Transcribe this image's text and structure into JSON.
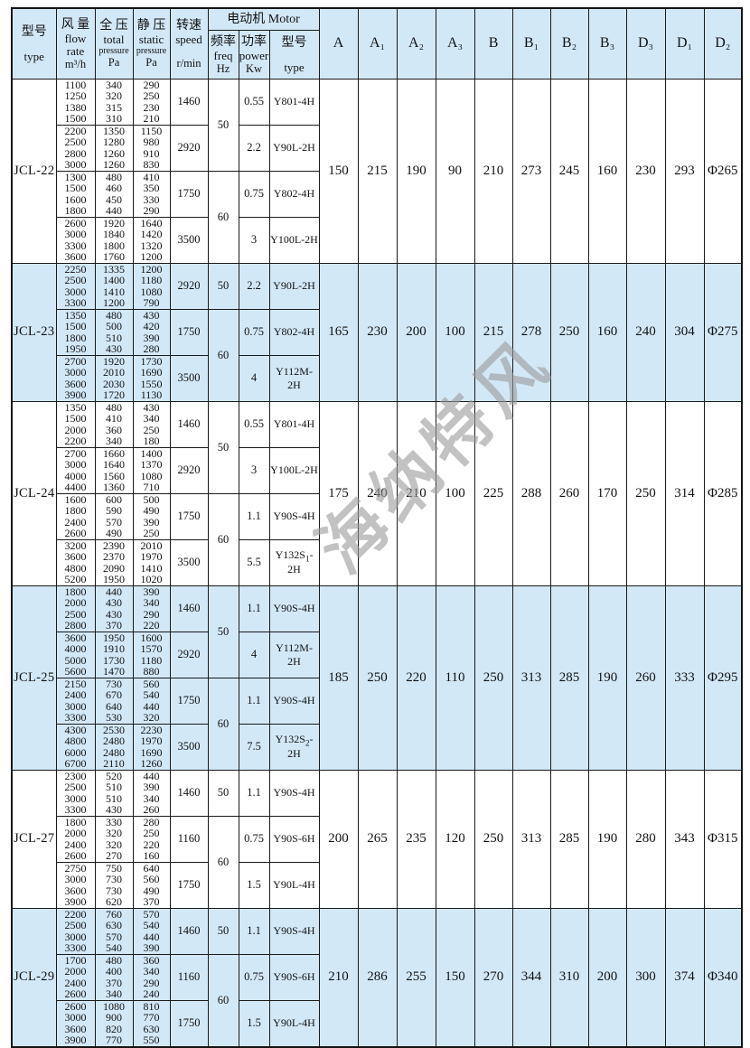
{
  "header": {
    "type_zh": "型号",
    "type_en": "type",
    "flow_zh": "风 量",
    "flow_en1": "flow",
    "flow_en2": "rate",
    "flow_unit": "m³/h",
    "total_zh": "全 压",
    "total_en": "total",
    "total_en2": "pressure",
    "total_unit": "Pa",
    "static_zh": "静 压",
    "static_en": "static",
    "static_en2": "pressure",
    "static_unit": "Pa",
    "speed_zh": "转速",
    "speed_en": "speed",
    "speed_unit": "r/min",
    "motor_group": "电动机 Motor",
    "freq_zh": "频率",
    "freq_en": "freq",
    "freq_unit": "Hz",
    "power_zh": "功率",
    "power_en": "power",
    "power_unit": "Kw",
    "mtype_zh": "型号",
    "mtype_en": "type",
    "dim_cols": [
      "A",
      "A₁",
      "A₂",
      "A₃",
      "B",
      "B₁",
      "B₂",
      "B₃",
      "D₃",
      "D₁",
      "D₂"
    ]
  },
  "watermark": "海纳特风",
  "colors": {
    "header_blue": "#d3e8f7",
    "border": "#1a1a1a",
    "watermark_gray": "#9a9a9a"
  },
  "sections": [
    {
      "model": "JCL-22",
      "shaded": false,
      "groups": [
        {
          "flow": [
            "1100",
            "1250",
            "1380",
            "1500"
          ],
          "total": [
            "340",
            "320",
            "315",
            "310"
          ],
          "static": [
            "290",
            "250",
            "230",
            "210"
          ],
          "speed": "1460",
          "power": "0.55",
          "motor": "Y801-4H"
        },
        {
          "flow": [
            "2200",
            "2500",
            "2800",
            "3000"
          ],
          "total": [
            "1350",
            "1280",
            "1260",
            "1260"
          ],
          "static": [
            "1150",
            "980",
            "910",
            "830"
          ],
          "speed": "2920",
          "power": "2.2",
          "motor": "Y90L-2H"
        },
        {
          "flow": [
            "1300",
            "1500",
            "1600",
            "1800"
          ],
          "total": [
            "480",
            "460",
            "450",
            "440"
          ],
          "static": [
            "410",
            "350",
            "330",
            "290"
          ],
          "speed": "1750",
          "power": "0.75",
          "motor": "Y802-4H"
        },
        {
          "flow": [
            "2600",
            "3000",
            "3300",
            "3600"
          ],
          "total": [
            "1920",
            "1840",
            "1800",
            "1760"
          ],
          "static": [
            "1640",
            "1420",
            "1320",
            "1200"
          ],
          "speed": "3500",
          "power": "3",
          "motor": "Y100L-2H"
        }
      ],
      "freqs": [
        {
          "row": 0,
          "span": 2,
          "label": "50"
        },
        {
          "row": 2,
          "span": 2,
          "label": "60"
        }
      ],
      "dims": [
        "150",
        "215",
        "190",
        "90",
        "210",
        "273",
        "245",
        "160",
        "230",
        "293",
        "Φ265"
      ]
    },
    {
      "model": "JCL-23",
      "shaded": true,
      "groups": [
        {
          "flow": [
            "2250",
            "2500",
            "3000",
            "3300"
          ],
          "total": [
            "1335",
            "1400",
            "1410",
            "1200"
          ],
          "static": [
            "1200",
            "1180",
            "1080",
            "790"
          ],
          "speed": "2920",
          "power": "2.2",
          "motor": "Y90L-2H"
        },
        {
          "flow": [
            "1350",
            "1500",
            "1800",
            "1950"
          ],
          "total": [
            "480",
            "500",
            "510",
            "430"
          ],
          "static": [
            "430",
            "420",
            "390",
            "280"
          ],
          "speed": "1750",
          "power": "0.75",
          "motor": "Y802-4H"
        },
        {
          "flow": [
            "2700",
            "3000",
            "3600",
            "3900"
          ],
          "total": [
            "1920",
            "2010",
            "2030",
            "1720"
          ],
          "static": [
            "1730",
            "1690",
            "1550",
            "1130"
          ],
          "speed": "3500",
          "power": "4",
          "motor": "Y112M-2H"
        }
      ],
      "freqs": [
        {
          "row": 0,
          "span": 1,
          "label": "50"
        },
        {
          "row": 1,
          "span": 2,
          "label": "60"
        }
      ],
      "dims": [
        "165",
        "230",
        "200",
        "100",
        "215",
        "278",
        "250",
        "160",
        "240",
        "304",
        "Φ275"
      ]
    },
    {
      "model": "JCL-24",
      "shaded": false,
      "groups": [
        {
          "flow": [
            "1350",
            "1500",
            "2000",
            "2200"
          ],
          "total": [
            "480",
            "410",
            "360",
            "340"
          ],
          "static": [
            "430",
            "340",
            "250",
            "180"
          ],
          "speed": "1460",
          "power": "0.55",
          "motor": "Y801-4H"
        },
        {
          "flow": [
            "2700",
            "3000",
            "4000",
            "4400"
          ],
          "total": [
            "1660",
            "1640",
            "1560",
            "1360"
          ],
          "static": [
            "1400",
            "1370",
            "1080",
            "710"
          ],
          "speed": "2920",
          "power": "3",
          "motor": "Y100L-2H"
        },
        {
          "flow": [
            "1600",
            "1800",
            "2400",
            "2600"
          ],
          "total": [
            "600",
            "590",
            "570",
            "490"
          ],
          "static": [
            "500",
            "490",
            "390",
            "250"
          ],
          "speed": "1750",
          "power": "1.1",
          "motor": "Y90S-4H"
        },
        {
          "flow": [
            "3200",
            "3600",
            "4800",
            "5200"
          ],
          "total": [
            "2390",
            "2370",
            "2090",
            "1950"
          ],
          "static": [
            "2010",
            "1970",
            "1410",
            "1020"
          ],
          "speed": "3500",
          "power": "5.5",
          "motor": "Y132S₁-2H"
        }
      ],
      "freqs": [
        {
          "row": 0,
          "span": 2,
          "label": "50"
        },
        {
          "row": 2,
          "span": 2,
          "label": "60"
        }
      ],
      "dims": [
        "175",
        "240",
        "210",
        "100",
        "225",
        "288",
        "260",
        "170",
        "250",
        "314",
        "Φ285"
      ]
    },
    {
      "model": "JCL-25",
      "shaded": true,
      "groups": [
        {
          "flow": [
            "1800",
            "2000",
            "2500",
            "2800"
          ],
          "total": [
            "440",
            "430",
            "430",
            "370"
          ],
          "static": [
            "390",
            "340",
            "290",
            "220"
          ],
          "speed": "1460",
          "power": "1.1",
          "motor": "Y90S-4H"
        },
        {
          "flow": [
            "3600",
            "4000",
            "5000",
            "5600"
          ],
          "total": [
            "1950",
            "1910",
            "1730",
            "1470"
          ],
          "static": [
            "1600",
            "1570",
            "1180",
            "880"
          ],
          "speed": "2920",
          "power": "4",
          "motor": "Y112M-2H"
        },
        {
          "flow": [
            "2150",
            "2400",
            "3000",
            "3300"
          ],
          "total": [
            "730",
            "670",
            "640",
            "530"
          ],
          "static": [
            "560",
            "540",
            "440",
            "320"
          ],
          "speed": "1750",
          "power": "1.1",
          "motor": "Y90S-4H"
        },
        {
          "flow": [
            "4300",
            "4800",
            "6000",
            "6700"
          ],
          "total": [
            "2530",
            "2480",
            "2480",
            "2110"
          ],
          "static": [
            "2230",
            "1970",
            "1690",
            "1260"
          ],
          "speed": "3500",
          "power": "7.5",
          "motor": "Y132S₂-2H"
        }
      ],
      "freqs": [
        {
          "row": 0,
          "span": 2,
          "label": "50"
        },
        {
          "row": 2,
          "span": 2,
          "label": "60"
        }
      ],
      "dims": [
        "185",
        "250",
        "220",
        "110",
        "250",
        "313",
        "285",
        "190",
        "260",
        "333",
        "Φ295"
      ]
    },
    {
      "model": "JCL-27",
      "shaded": false,
      "groups": [
        {
          "flow": [
            "2300",
            "2500",
            "3000",
            "3300"
          ],
          "total": [
            "520",
            "510",
            "510",
            "430"
          ],
          "static": [
            "440",
            "390",
            "340",
            "260"
          ],
          "speed": "1460",
          "power": "1.1",
          "motor": "Y90S-4H"
        },
        {
          "flow": [
            "1800",
            "2000",
            "2400",
            "2600"
          ],
          "total": [
            "330",
            "320",
            "320",
            "270"
          ],
          "static": [
            "280",
            "250",
            "220",
            "160"
          ],
          "speed": "1160",
          "power": "0.75",
          "motor": "Y90S-6H"
        },
        {
          "flow": [
            "2750",
            "3000",
            "3600",
            "3900"
          ],
          "total": [
            "750",
            "730",
            "730",
            "620"
          ],
          "static": [
            "640",
            "560",
            "490",
            "370"
          ],
          "speed": "1750",
          "power": "1.5",
          "motor": "Y90L-4H"
        }
      ],
      "freqs": [
        {
          "row": 0,
          "span": 1,
          "label": "50"
        },
        {
          "row": 1,
          "span": 2,
          "label": "60"
        }
      ],
      "dims": [
        "200",
        "265",
        "235",
        "120",
        "250",
        "313",
        "285",
        "190",
        "280",
        "343",
        "Φ315"
      ]
    },
    {
      "model": "JCL-29",
      "shaded": true,
      "groups": [
        {
          "flow": [
            "2200",
            "2500",
            "3000",
            "3300"
          ],
          "total": [
            "760",
            "630",
            "570",
            "540"
          ],
          "static": [
            "570",
            "540",
            "440",
            "390"
          ],
          "speed": "1460",
          "power": "1.1",
          "motor": "Y90S-4H"
        },
        {
          "flow": [
            "1700",
            "2000",
            "2400",
            "2600"
          ],
          "total": [
            "480",
            "400",
            "370",
            "340"
          ],
          "static": [
            "360",
            "340",
            "290",
            "240"
          ],
          "speed": "1160",
          "power": "0.75",
          "motor": "Y90S-6H"
        },
        {
          "flow": [
            "2600",
            "3000",
            "3600",
            "3900"
          ],
          "total": [
            "1080",
            "900",
            "820",
            "770"
          ],
          "static": [
            "810",
            "770",
            "630",
            "550"
          ],
          "speed": "1750",
          "power": "1.5",
          "motor": "Y90L-4H"
        }
      ],
      "freqs": [
        {
          "row": 0,
          "span": 1,
          "label": "50"
        },
        {
          "row": 1,
          "span": 2,
          "label": "60"
        }
      ],
      "dims": [
        "210",
        "286",
        "255",
        "150",
        "270",
        "344",
        "310",
        "200",
        "300",
        "374",
        "Φ340"
      ]
    }
  ]
}
